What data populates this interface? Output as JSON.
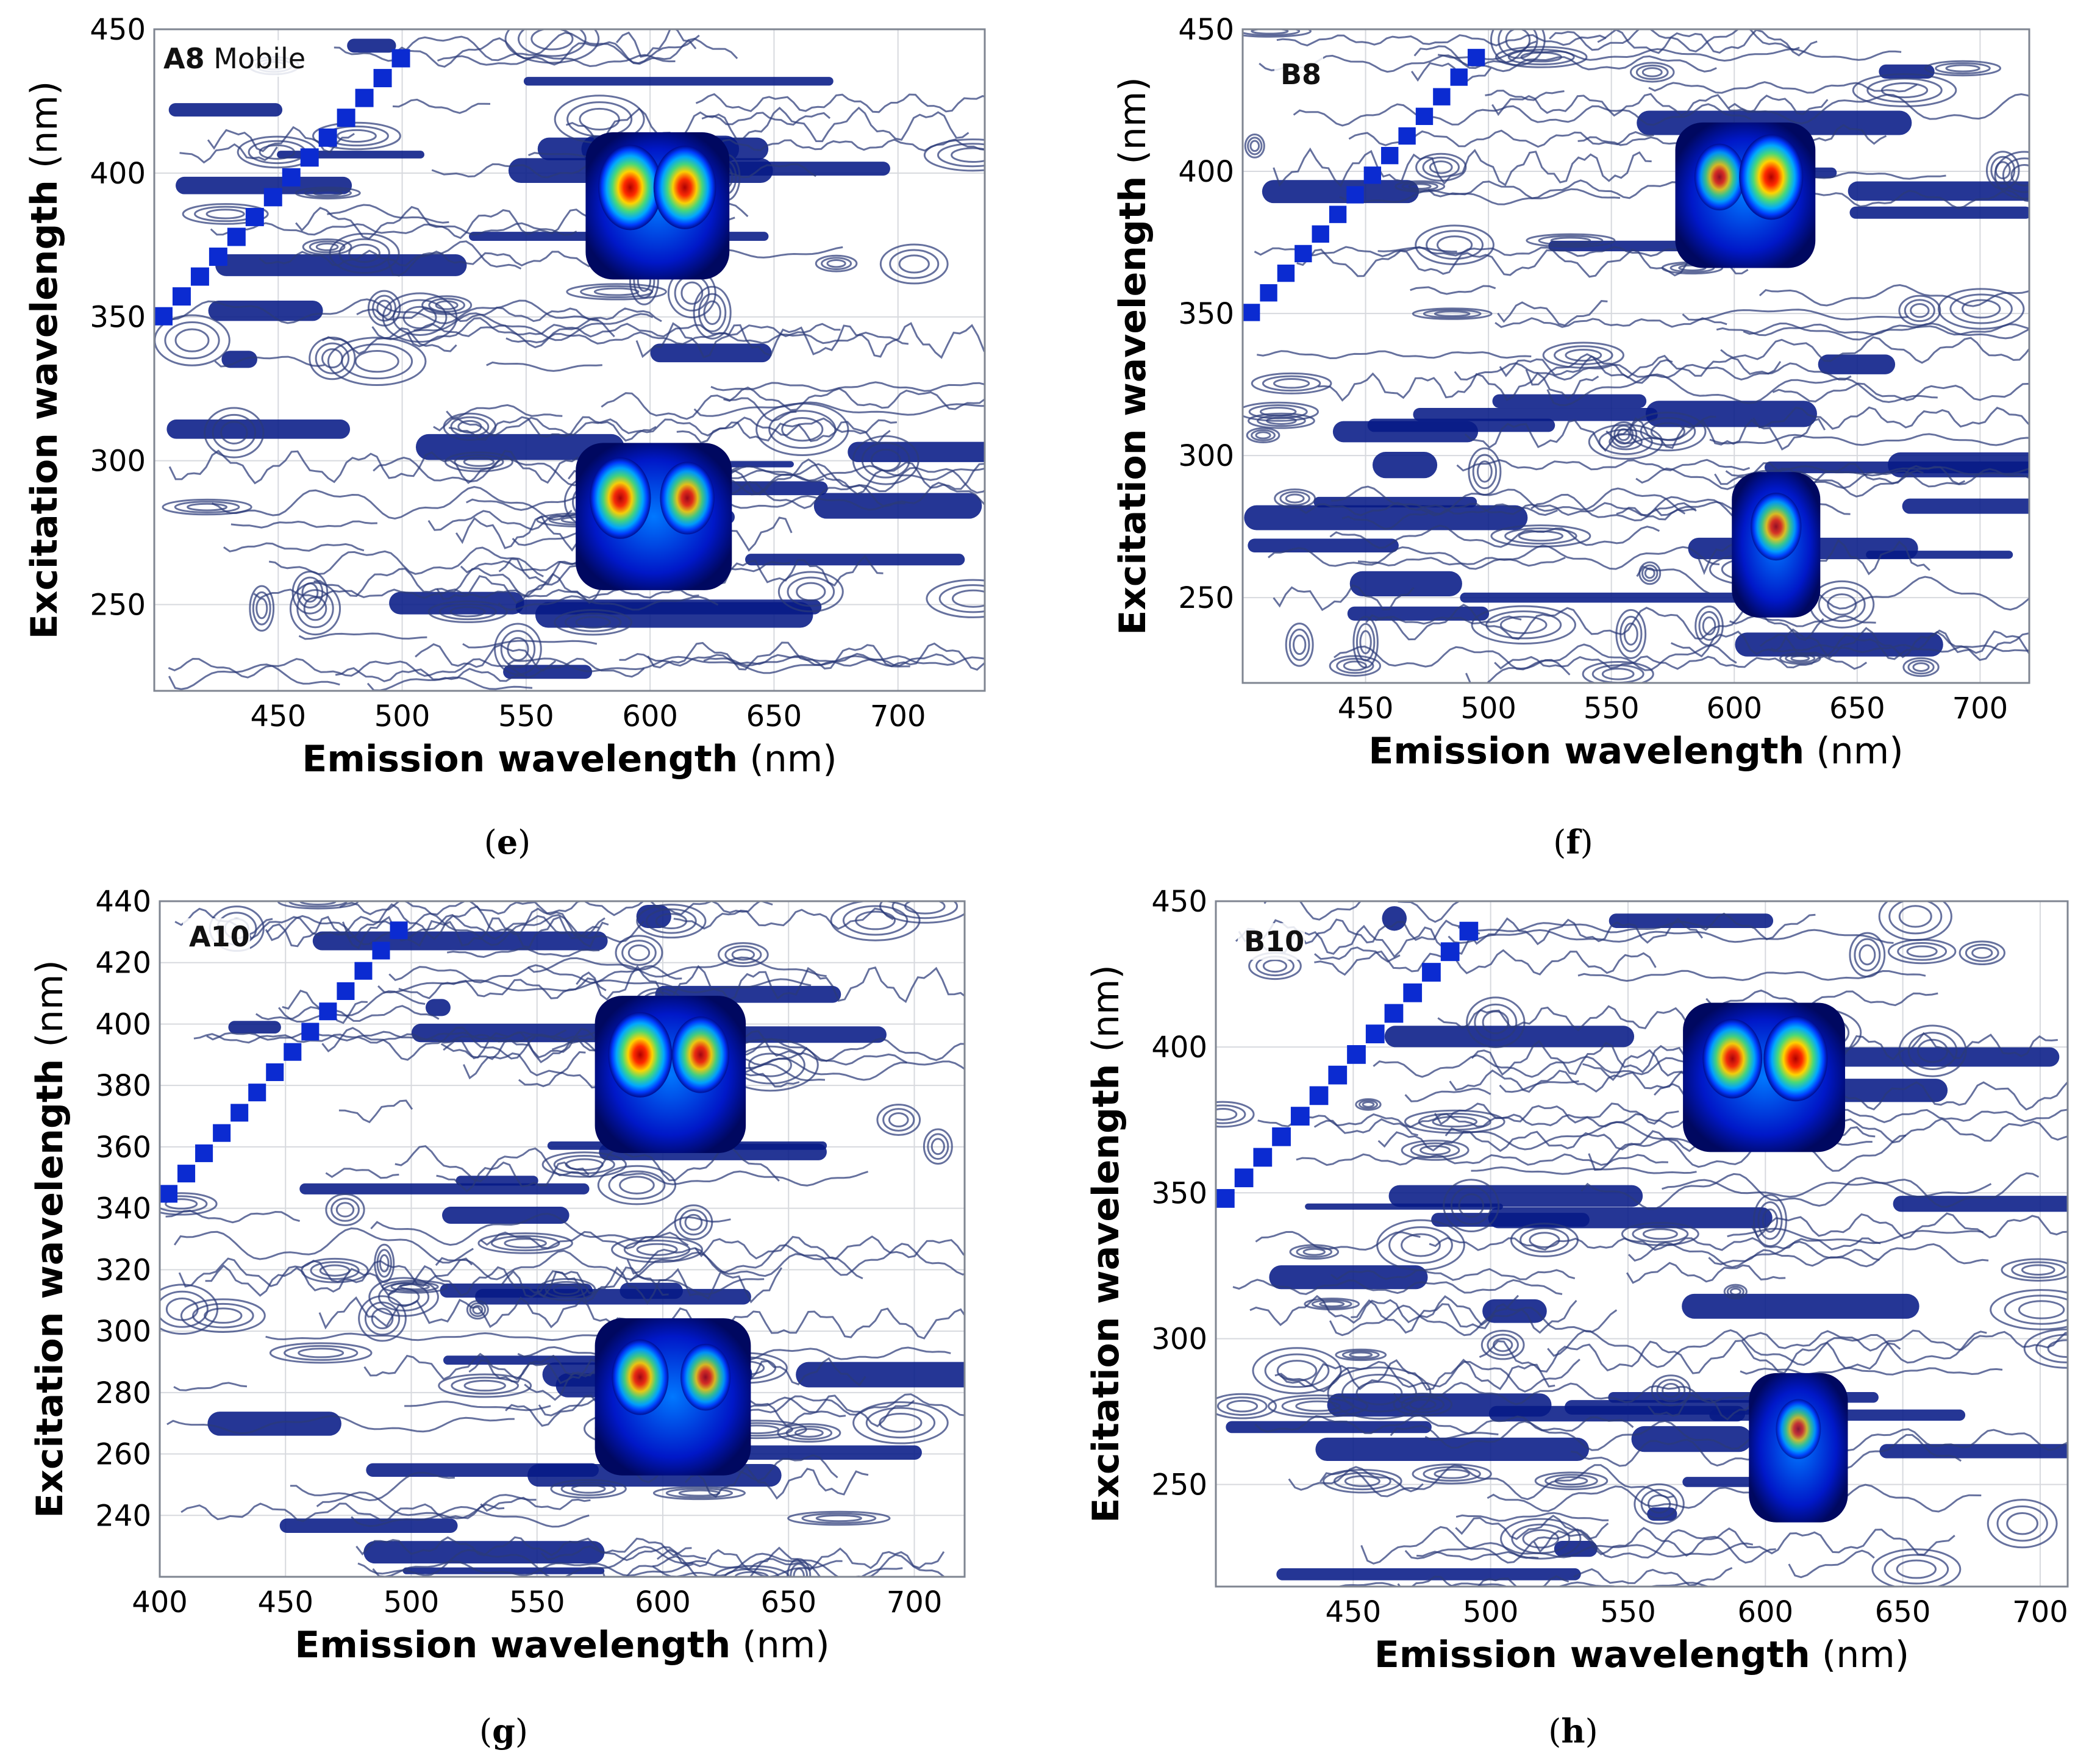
{
  "chart_data": [
    {
      "type": "heatmap",
      "panel": "(e)",
      "sample": "A8 Mobile",
      "xlabel": "Emission wavelength (nm)",
      "ylabel": "Excitation wavelength (nm)",
      "xlim": [
        400,
        735
      ],
      "ylim": [
        220,
        450
      ],
      "xticks": [
        450,
        500,
        550,
        600,
        650,
        700
      ],
      "yticks": [
        250,
        300,
        350,
        400,
        450
      ],
      "peaks": [
        {
          "emission": 592,
          "excitation": 395,
          "intensity": 1.0
        },
        {
          "emission": 614,
          "excitation": 395,
          "intensity": 0.96
        },
        {
          "emission": 588,
          "excitation": 287,
          "intensity": 0.92
        },
        {
          "emission": 615,
          "excitation": 287,
          "intensity": 0.74
        }
      ]
    },
    {
      "type": "heatmap",
      "panel": "(f)",
      "sample": "B8",
      "xlabel": "Emission wavelength (nm)",
      "ylabel": "Excitation wavelength (nm)",
      "xlim": [
        400,
        720
      ],
      "ylim": [
        220,
        450
      ],
      "xticks": [
        450,
        500,
        550,
        600,
        650,
        700
      ],
      "yticks": [
        250,
        300,
        350,
        400,
        450
      ],
      "peaks": [
        {
          "emission": 594,
          "excitation": 398,
          "intensity": 0.62
        },
        {
          "emission": 615,
          "excitation": 398,
          "intensity": 1.0
        },
        {
          "emission": 617,
          "excitation": 275,
          "intensity": 0.64
        }
      ]
    },
    {
      "type": "heatmap",
      "panel": "(g)",
      "sample": "A10",
      "xlabel": "Emission wavelength (nm)",
      "ylabel": "Excitation wavelength (nm)",
      "xlim": [
        400,
        720
      ],
      "ylim": [
        220,
        440
      ],
      "xticks": [
        400,
        450,
        500,
        550,
        600,
        650,
        700
      ],
      "yticks": [
        240,
        260,
        280,
        300,
        320,
        340,
        360,
        380,
        400,
        420,
        440
      ],
      "peaks": [
        {
          "emission": 591,
          "excitation": 390,
          "intensity": 1.0
        },
        {
          "emission": 615,
          "excitation": 390,
          "intensity": 0.82
        },
        {
          "emission": 591,
          "excitation": 285,
          "intensity": 0.8
        },
        {
          "emission": 617,
          "excitation": 285,
          "intensity": 0.62
        }
      ]
    },
    {
      "type": "heatmap",
      "panel": "(h)",
      "sample": "B10",
      "xlabel": "Emission wavelength (nm)",
      "ylabel": "Excitation wavelength (nm)",
      "xlim": [
        400,
        710
      ],
      "ylim": [
        215,
        450
      ],
      "xticks": [
        450,
        500,
        550,
        600,
        650,
        700
      ],
      "yticks": [
        250,
        300,
        350,
        400,
        450
      ],
      "peaks": [
        {
          "emission": 588,
          "excitation": 396,
          "intensity": 0.88
        },
        {
          "emission": 611,
          "excitation": 396,
          "intensity": 1.0
        },
        {
          "emission": 612,
          "excitation": 269,
          "intensity": 0.48
        }
      ]
    }
  ],
  "palette": {
    "contour": "#2b3a78",
    "band": "#071a86",
    "stair": "#0b2bd1",
    "frame": "#7f8591",
    "grid": "#d7d9de"
  }
}
